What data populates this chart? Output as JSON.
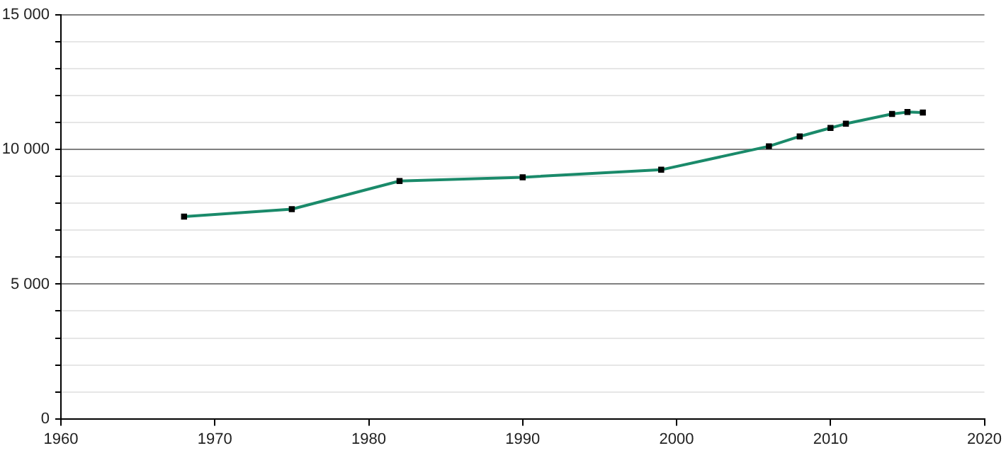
{
  "chart_data": {
    "type": "line",
    "x": [
      1968,
      1975,
      1982,
      1990,
      1999,
      2006,
      2008,
      2010,
      2011,
      2014,
      2015,
      2016
    ],
    "series": [
      {
        "color": "#1a8a6a",
        "values": [
          7510,
          7787,
          8833,
          8972,
          9250,
          10124,
          10490,
          10803,
          10960,
          11325,
          11393,
          11377
        ]
      }
    ],
    "xlim": [
      1960,
      2020
    ],
    "xticks": [
      1960,
      1970,
      1980,
      1990,
      2000,
      2010,
      2020
    ],
    "ylim": [
      0,
      15000
    ],
    "yticks": [
      {
        "value": 0,
        "label": "0"
      },
      {
        "value": 1000,
        "label": null
      },
      {
        "value": 2000,
        "label": null
      },
      {
        "value": 3000,
        "label": null
      },
      {
        "value": 4000,
        "label": null
      },
      {
        "value": 5000,
        "label": "5 000"
      },
      {
        "value": 6000,
        "label": null
      },
      {
        "value": 7000,
        "label": null
      },
      {
        "value": 8000,
        "label": null
      },
      {
        "value": 9000,
        "label": null
      },
      {
        "value": 10000,
        "label": "10 000"
      },
      {
        "value": 11000,
        "label": null
      },
      {
        "value": 12000,
        "label": null
      },
      {
        "value": 13000,
        "label": null
      },
      {
        "value": 14000,
        "label": null
      },
      {
        "value": 15000,
        "label": "15 000"
      }
    ],
    "grid": "y",
    "marker": "square",
    "line_style": "solid",
    "legend": false
  }
}
